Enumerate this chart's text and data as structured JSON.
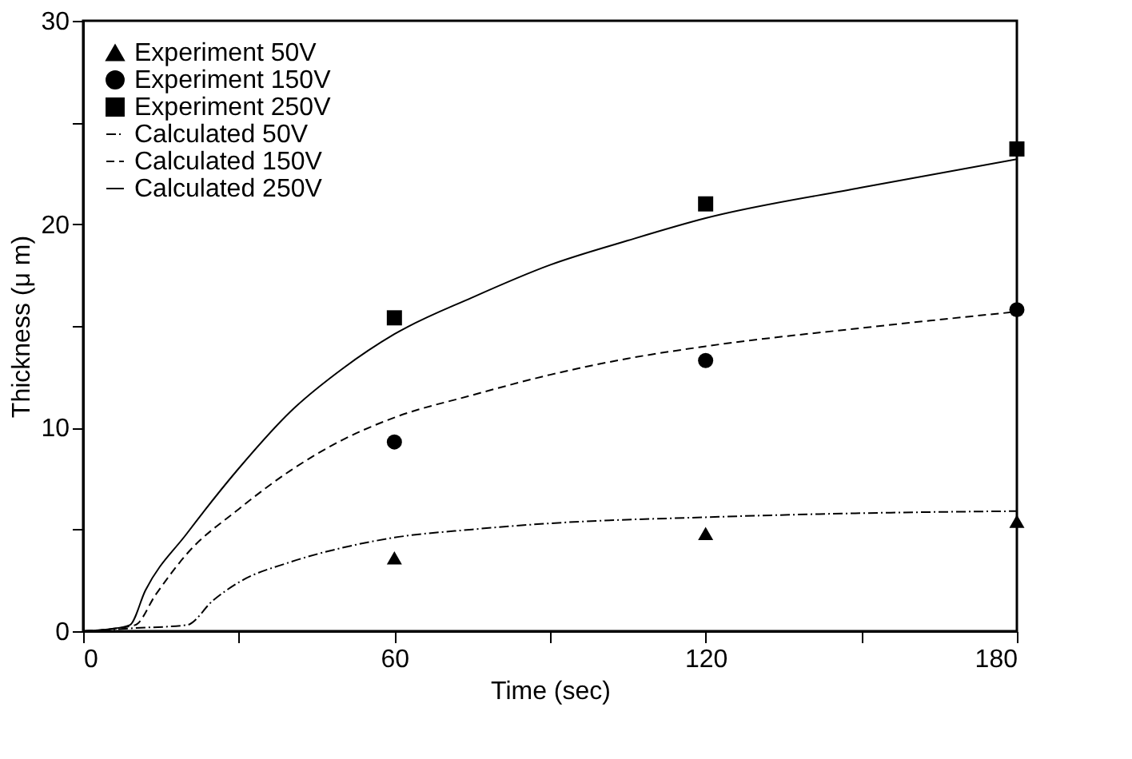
{
  "chart_data": {
    "type": "line",
    "xlabel": "Time (sec)",
    "ylabel": "Thickness (μ m)",
    "xlim": [
      0,
      180
    ],
    "xticks": [
      0,
      {
        "value": 30,
        "label": null
      },
      60,
      {
        "value": 90,
        "label": null
      },
      120,
      {
        "value": 150,
        "label": null
      },
      180
    ],
    "ylim": [
      0,
      30
    ],
    "yticks": [
      0,
      {
        "value": 5,
        "label": null
      },
      10,
      {
        "value": 15,
        "label": null
      },
      20,
      {
        "value": 25,
        "label": null
      },
      30
    ],
    "grid": false,
    "legend": "top left",
    "series": [
      {
        "name": "Experiment  50V",
        "type": "scatter",
        "marker": "triangle",
        "color": "#000000",
        "x": [
          60,
          120,
          180
        ],
        "values": [
          3.6,
          4.8,
          5.4
        ]
      },
      {
        "name": "Experiment 150V",
        "type": "scatter",
        "marker": "circle",
        "color": "#000000",
        "x": [
          60,
          120,
          180
        ],
        "values": [
          9.3,
          13.3,
          15.8
        ]
      },
      {
        "name": "Experiment 250V",
        "type": "scatter",
        "marker": "square",
        "color": "#000000",
        "x": [
          60,
          120,
          180
        ],
        "values": [
          15.4,
          21.0,
          23.7
        ]
      },
      {
        "name": "Calculated  50V",
        "line_style": "dotted",
        "color": "#000000",
        "x": [
          0,
          10,
          20,
          25,
          30,
          40,
          50,
          60,
          75,
          90,
          120,
          150,
          180
        ],
        "values": [
          0,
          0.15,
          0.3,
          1.5,
          2.4,
          3.4,
          4.1,
          4.6,
          5.0,
          5.3,
          5.6,
          5.8,
          5.9
        ]
      },
      {
        "name": "Calculated 150V",
        "line_style": "dashed",
        "color": "#000000",
        "x": [
          0,
          10,
          14,
          20,
          30,
          40,
          50,
          60,
          75,
          90,
          105,
          120,
          150,
          180
        ],
        "values": [
          0,
          0.3,
          1.8,
          3.8,
          6.0,
          7.9,
          9.4,
          10.5,
          11.6,
          12.6,
          13.4,
          14.0,
          14.9,
          15.7
        ]
      },
      {
        "name": "Calculated 250V",
        "line_style": "solid",
        "color": "#000000",
        "x": [
          0,
          5,
          9,
          12,
          20,
          30,
          40,
          50,
          60,
          75,
          90,
          105,
          120,
          150,
          180
        ],
        "values": [
          0,
          0.1,
          0.3,
          2.0,
          4.8,
          8.0,
          10.8,
          12.9,
          14.6,
          16.4,
          18.0,
          19.2,
          20.3,
          21.8,
          23.2
        ]
      }
    ]
  }
}
